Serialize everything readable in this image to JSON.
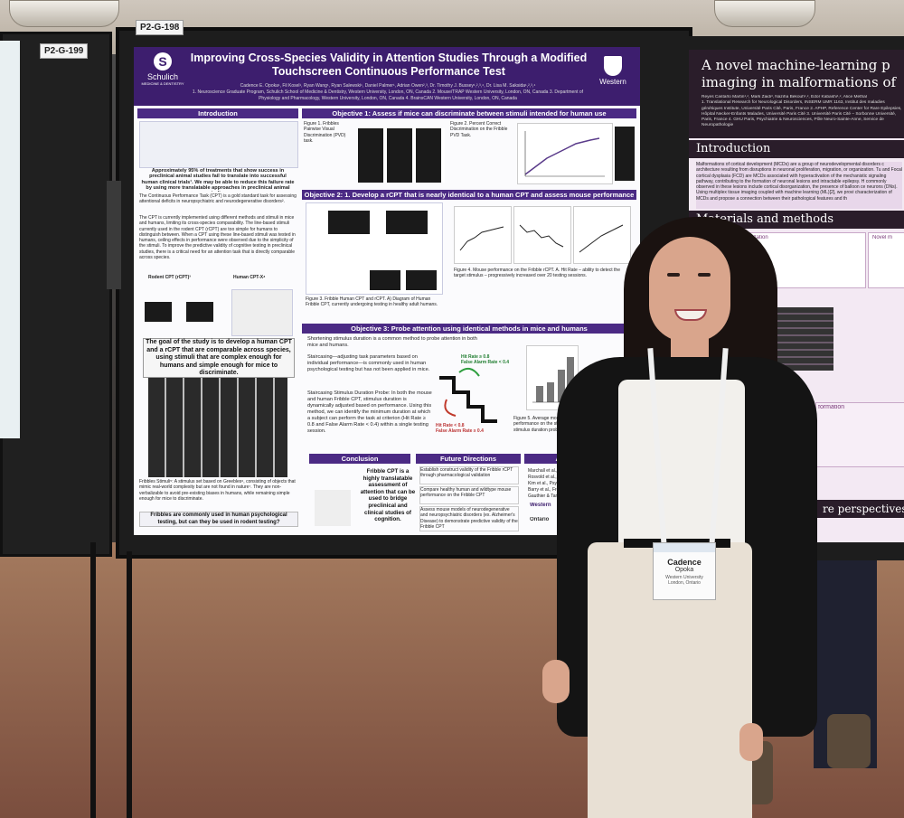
{
  "poster": {
    "board_label": "P2-G-198",
    "title": "Improving Cross-Species Validity in Attention Studies Through a Modified Touchscreen Continuous Performance Test",
    "authors": "Cadence E. Opoka¹, Fil Kosel¹, Ryan Wang¹, Ryan Salewski¹, Daniel Palmer¹, Adrian Owen²,³, Dr. Timothy J. Bussey¹,²,³,⁴, Dr. Lisa M. Saksida¹,²,³,⁴",
    "affiliations": "1. Neuroscience Graduate Program, Schulich School of Medicine & Dentistry, Western University, London, ON, Canada 2. Mouse/TRAP Western University, London, ON, Canada 3. Department of Physiology and Pharmacology, Western University, London, ON, Canada 4. BrainsCAN Western University, London, ON, Canada",
    "left_logo": "Schulich",
    "left_logo_sub": "MEDICINE & DENTISTRY",
    "right_logo": "Western",
    "sections": {
      "introduction": "Introduction",
      "objective1": "Objective 1: Assess if mice can discriminate between stimuli intended for human use",
      "objective2": "Objective 2: 1. Develop a rCPT that is nearly identical to a human CPT and assess mouse performance",
      "objective3": "Objective 3: Probe attention using identical methods in mice and humans",
      "conclusion": "Conclusion",
      "future": "Future Directions",
      "acknowledgements": "Acknowledgem"
    },
    "intro_text_1": "Approximately 95% of treatments that show success in preclinical animal studies fail to translate into successful human clinical trials¹. We may be able to reduce this failure rate by using more translatable approaches in preclinical animal studies.",
    "intro_text_2": "The Continuous Performance Task (CPT) is a gold standard task for assessing attentional deficits in neuropsychiatric and neurodegenerative disorders².",
    "intro_text_3": "The CPT is currently implemented using different methods and stimuli in mice and humans, limiting its cross-species comparability. The line-based stimuli currently used in the rodent CPT (rCPT) are too simple for humans to distinguish between. When a CPT using these line-based stimuli was tested in humans, ceiling effects in performance were observed due to the simplicity of the stimuli. To improve the predictive validity of cognitive testing in preclinical studies, there is a critical need for an attention task that is directly comparable across species.",
    "rodent_label": "Rodent CPT (rCPT)³",
    "human_label": "Human CPT-X⁴",
    "goal": "The goal of the study is to develop a human CPT and a rCPT that are comparable across species, using stimuli that are complex enough for humans and simple enough for mice to discriminate.",
    "fribbles_text": "Fribbles Stimuli⁵: A stimulus set based on Greebles⁶, consisting of objects that mimic real-world complexity but are not found in nature⁷. They are non-verbalizable to avoid pre-existing biases in humans, while remaining simple enough for mice to discriminate.",
    "fribbles_question": "Fribbles are commonly used in human psychological testing, but can they be used in rodent testing?",
    "obj3_text_1": "Shortening stimulus duration is a common method to probe attention in both mice and humans.",
    "obj3_text_2": "Staircasing—adjusting task parameters based on individual performance—is commonly used in human psychological testing but has not been applied in mice.",
    "obj3_text_3": "Staircasing Stimulus Duration Probe: In both the mouse and human Fribble CPT, stimulus duration is dynamically adjusted based on performance. Using this method, we can identify the minimum duration at which a subject can perform the task at criterion (Hit Rate ≥ 0.8 and False Alarm Rate < 0.4) within a single testing session.",
    "staircase_up": "Hit Rate ≥ 0.8\nFalse Alarm Rate < 0.4",
    "staircase_down": "Hit Rate < 0.8\nFalse Alarm Rate ≥ 0.4",
    "conclusion_text": "Fribble CPT is a highly translatable assessment of attention that can be used to bridge preclinical and clinical studies of cognition.",
    "future_items": [
      "Establish construct validity of the Fribble rCPT through pharmacological validation",
      "Compare healthy human and wildtype mouse performance on the Fribble CPT",
      "Assess mouse models of neurodegenerative and neuropsychiatric disorders (ex. Alzheimer's Disease) to demonstrate predictive validity of the Fribble CPT"
    ],
    "ack_items": [
      "Marchall et al., Jorn",
      "Rosvold et al., Journ",
      "Kim et al., Psycholo",
      "Barry et al., Front. H",
      "Gauthier & Tarr, Visi"
    ],
    "sponsors": [
      "Western",
      "Ontario"
    ]
  },
  "right_poster": {
    "title": "A novel machine-learning p",
    "title_line2": "imaging in malformations of",
    "authors": "Reyes Castaño Martin¹,², Mark Zaidi³, Naziha Bekouh¹,², Edor Kabashi¹,², Alice Methal",
    "affiliations": "1. Translational Research for Neurological Disorders, INSERM UMR 1163, Institut des maladies génétiques Institute, Université Paris Cité, Paris, France 2. APHP, Reference Center for Rare Epilepsies, Hôpital Necker-Enfants Malades, Université Paris Cité 3. Université Paris Cité – Sorbonne Université, Paris, France 4. GHU Paris, Psychiatrie & Neurosciences, Pôle Neuro-Sainte-Anne, Service de Neuropathologie",
    "introduction_heading": "Introduction",
    "introduction_text": "Malformations of cortical development (MCDs) are a group of neurodevelopmental disorders c architecture resulting from disruptions in neuronal proliferation, migration, or organization. Tu and Focal cortical dysplasia (FCD) are MCDs associated with hyperactivation of the mechanistic signaling pathway, contributing to the formation of neuronal lesions and intractable epilepsy. H commonly observed in these lesions include cortical disorganization, the presence of balloon ce neurons (DNs). Using multiplex tissue imaging coupled with machine learning (ML)[2], we provi characterization of MCDs and propose a connection between their pathological features and th",
    "methods_heading": "Materials and methods",
    "novel_label": "Novel m",
    "characterization_label": "racterization",
    "information_label": "formation",
    "perspectives_heading": "re perspectives"
  },
  "left_board": {
    "label": "P2-G-199"
  },
  "badge": {
    "name": "Cadence",
    "surname": "Opoka",
    "org": "Western University",
    "city": "London, Ontario"
  },
  "colors": {
    "poster_purple": "#3d1e6e",
    "section_purple": "#4b2a84",
    "right_poster_dark": "#2a1d2a"
  }
}
